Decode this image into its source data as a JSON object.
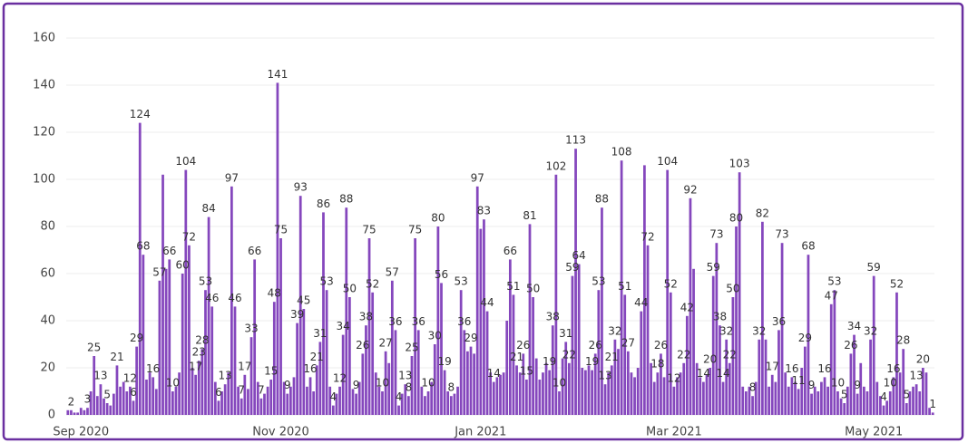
{
  "chart_data": {
    "type": "bar",
    "color": "#8547bd",
    "grid": true,
    "ylim": [
      0,
      160
    ],
    "yticks": [
      0,
      20,
      40,
      60,
      80,
      100,
      120,
      140,
      160
    ],
    "categories": [
      null,
      null,
      null,
      null,
      "Sep 2020",
      null,
      null,
      null,
      null,
      null,
      null,
      null,
      null,
      null,
      null,
      null,
      null,
      null,
      null,
      null,
      null,
      null,
      null,
      null,
      null,
      null,
      null,
      null,
      null,
      null,
      null,
      null,
      null,
      null,
      null,
      null,
      null,
      null,
      null,
      null,
      null,
      null,
      null,
      null,
      null,
      null,
      null,
      null,
      null,
      null,
      null,
      null,
      null,
      null,
      null,
      null,
      null,
      null,
      null,
      null,
      null,
      null,
      null,
      null,
      null,
      "Nov 2020",
      null,
      null,
      null,
      null,
      null,
      null,
      null,
      null,
      null,
      null,
      null,
      null,
      null,
      null,
      null,
      null,
      null,
      null,
      null,
      null,
      null,
      null,
      null,
      null,
      null,
      null,
      null,
      null,
      null,
      null,
      null,
      null,
      null,
      null,
      null,
      null,
      null,
      null,
      null,
      null,
      null,
      null,
      null,
      null,
      null,
      null,
      null,
      null,
      null,
      null,
      null,
      null,
      null,
      null,
      null,
      null,
      null,
      null,
      null,
      null,
      "Jan 2021",
      null,
      null,
      null,
      null,
      null,
      null,
      null,
      null,
      null,
      null,
      null,
      null,
      null,
      null,
      null,
      null,
      null,
      null,
      null,
      null,
      null,
      null,
      null,
      null,
      null,
      null,
      null,
      null,
      null,
      null,
      null,
      null,
      null,
      null,
      null,
      null,
      null,
      null,
      null,
      null,
      null,
      null,
      null,
      null,
      null,
      null,
      null,
      null,
      null,
      null,
      null,
      null,
      null,
      null,
      null,
      null,
      null,
      null,
      "Mar 2021",
      null,
      null,
      null,
      null,
      null,
      null,
      null,
      null,
      null,
      null,
      null,
      null,
      null,
      null,
      null,
      null,
      null,
      null,
      null,
      null,
      null,
      null,
      null,
      null,
      null,
      null,
      null,
      null,
      null,
      null,
      null,
      null,
      null,
      null,
      null,
      null,
      null,
      null,
      null,
      null,
      null,
      null,
      null,
      null,
      null,
      null,
      null,
      null,
      null,
      null,
      null,
      null,
      null,
      null,
      null,
      null,
      null,
      null,
      null,
      null,
      "May 2021",
      null,
      null,
      null,
      null,
      null,
      null,
      null,
      null,
      null,
      null,
      null,
      null,
      null,
      null,
      null,
      null,
      null,
      null
    ],
    "values": [
      2,
      2,
      1,
      1,
      3,
      2,
      3,
      10,
      25,
      8,
      13,
      7,
      5,
      4,
      9,
      21,
      12,
      14,
      10,
      12,
      6,
      29,
      124,
      68,
      15,
      18,
      16,
      11,
      57,
      102,
      62,
      66,
      10,
      12,
      18,
      60,
      104,
      72,
      20,
      17,
      23,
      28,
      53,
      84,
      46,
      14,
      6,
      10,
      13,
      18,
      97,
      46,
      12,
      7,
      17,
      11,
      33,
      66,
      14,
      7,
      9,
      12,
      15,
      48,
      141,
      75,
      14,
      9,
      12,
      16,
      39,
      93,
      45,
      12,
      16,
      10,
      21,
      31,
      86,
      53,
      12,
      4,
      9,
      12,
      34,
      88,
      50,
      11,
      9,
      14,
      26,
      38,
      75,
      52,
      18,
      12,
      10,
      27,
      22,
      57,
      36,
      4,
      9,
      13,
      8,
      25,
      75,
      36,
      12,
      8,
      10,
      14,
      30,
      80,
      56,
      19,
      10,
      8,
      9,
      12,
      53,
      36,
      27,
      29,
      26,
      97,
      79,
      83,
      44,
      18,
      14,
      16,
      17,
      18,
      40,
      66,
      51,
      21,
      18,
      26,
      15,
      81,
      50,
      24,
      15,
      18,
      22,
      19,
      38,
      102,
      10,
      24,
      31,
      22,
      59,
      113,
      64,
      20,
      19,
      21,
      19,
      26,
      53,
      88,
      13,
      18,
      21,
      32,
      28,
      108,
      51,
      27,
      18,
      16,
      20,
      44,
      106,
      72,
      22,
      14,
      18,
      26,
      16,
      104,
      52,
      12,
      16,
      18,
      22,
      42,
      92,
      62,
      22,
      16,
      14,
      17,
      20,
      59,
      73,
      38,
      14,
      32,
      22,
      50,
      80,
      103,
      12,
      10,
      12,
      8,
      14,
      32,
      82,
      32,
      12,
      17,
      14,
      36,
      73,
      18,
      12,
      16,
      14,
      11,
      20,
      29,
      68,
      9,
      12,
      10,
      14,
      16,
      12,
      47,
      53,
      10,
      7,
      5,
      12,
      26,
      34,
      9,
      22,
      12,
      10,
      32,
      59,
      14,
      8,
      4,
      6,
      10,
      16,
      52,
      18,
      28,
      5,
      10,
      12,
      13,
      10,
      20,
      18,
      3,
      1
    ],
    "value_labels": [
      null,
      "2",
      null,
      null,
      null,
      null,
      "3",
      null,
      "25",
      null,
      "13",
      null,
      "5",
      null,
      null,
      "21",
      null,
      null,
      null,
      "12",
      "6",
      "29",
      "124",
      "68",
      null,
      null,
      "16",
      null,
      "57",
      null,
      null,
      "66",
      "10",
      null,
      null,
      "60",
      "104",
      "72",
      null,
      "17",
      "23",
      "28",
      "53",
      "84",
      "46",
      null,
      "6",
      null,
      "13",
      null,
      "97",
      "46",
      null,
      "7",
      "17",
      null,
      "33",
      "66",
      null,
      "7",
      null,
      null,
      "15",
      "48",
      "141",
      "75",
      null,
      "9",
      null,
      null,
      "39",
      "93",
      "45",
      null,
      "16",
      null,
      "21",
      "31",
      "86",
      "53",
      null,
      "4",
      null,
      "12",
      "34",
      "88",
      "50",
      null,
      "9",
      null,
      "26",
      "38",
      "75",
      "52",
      null,
      null,
      "10",
      "27",
      null,
      "57",
      "36",
      "4",
      null,
      "13",
      "8",
      "25",
      "75",
      "36",
      null,
      null,
      "10",
      null,
      "30",
      "80",
      "56",
      "19",
      null,
      "8",
      null,
      null,
      "53",
      "36",
      null,
      "29",
      null,
      "97",
      null,
      "83",
      "44",
      null,
      "14",
      null,
      null,
      null,
      null,
      "66",
      "51",
      "21",
      null,
      "26",
      "15",
      "81",
      "50",
      null,
      null,
      null,
      null,
      "19",
      "38",
      "102",
      "10",
      null,
      "31",
      "22",
      "59",
      "113",
      "64",
      null,
      null,
      null,
      "19",
      "26",
      "53",
      "88",
      "13",
      null,
      "21",
      "32",
      null,
      "108",
      "51",
      "27",
      null,
      null,
      null,
      "44",
      null,
      "72",
      null,
      null,
      "18",
      "26",
      null,
      "104",
      "52",
      "12",
      null,
      null,
      "22",
      "42",
      "92",
      null,
      null,
      null,
      "14",
      null,
      "20",
      "59",
      "73",
      "38",
      "14",
      "32",
      "22",
      "50",
      "80",
      "103",
      null,
      null,
      null,
      "8",
      null,
      "32",
      "82",
      null,
      null,
      "17",
      null,
      "36",
      "73",
      null,
      null,
      "16",
      null,
      "11",
      null,
      "29",
      "68",
      "9",
      null,
      null,
      null,
      "16",
      null,
      "47",
      "53",
      "10",
      null,
      "5",
      null,
      "26",
      "34",
      "9",
      null,
      null,
      null,
      "32",
      "59",
      null,
      null,
      "4",
      null,
      "10",
      "16",
      "52",
      null,
      "28",
      "5",
      null,
      null,
      "13",
      null,
      "20",
      null,
      null,
      "1"
    ]
  }
}
